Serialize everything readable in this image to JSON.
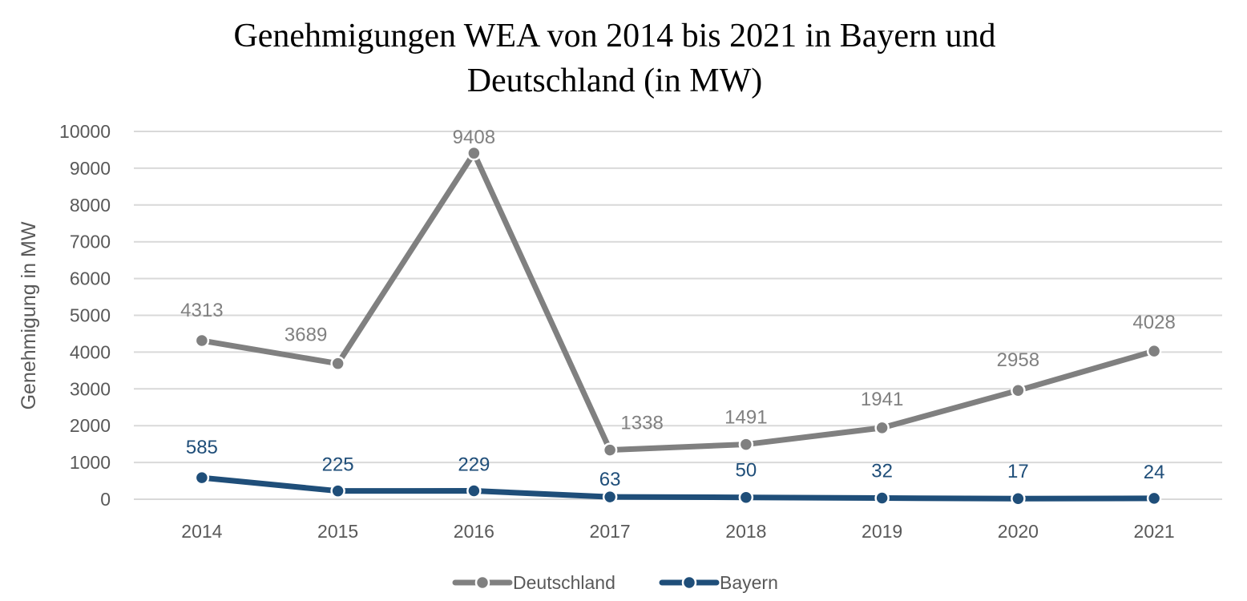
{
  "chart_data": {
    "type": "line",
    "title_lines": [
      "Genehmigungen WEA von 2014 bis 2021 in Bayern und",
      "Deutschland (in MW)"
    ],
    "xlabel": "",
    "ylabel": "Genehmigung in MW",
    "x": [
      "2014",
      "2015",
      "2016",
      "2017",
      "2018",
      "2019",
      "2020",
      "2021"
    ],
    "ylim": [
      0,
      10000
    ],
    "yticks": [
      "0",
      "1000",
      "2000",
      "3000",
      "4000",
      "5000",
      "6000",
      "7000",
      "8000",
      "9000",
      "10000"
    ],
    "grid": true,
    "legend_position": "bottom",
    "series": [
      {
        "name": "Deutschland",
        "color": "#808080",
        "values": [
          4313,
          3689,
          9408,
          1338,
          1491,
          1941,
          2958,
          4028
        ],
        "labels": [
          "4313",
          "3689",
          "9408",
          "1338",
          "1491",
          "1941",
          "2958",
          "4028"
        ]
      },
      {
        "name": "Bayern",
        "color": "#1f4e79",
        "values": [
          585,
          225,
          229,
          63,
          50,
          32,
          17,
          24
        ],
        "labels": [
          "585",
          "225",
          "229",
          "63",
          "50",
          "32",
          "17",
          "24"
        ]
      }
    ]
  }
}
